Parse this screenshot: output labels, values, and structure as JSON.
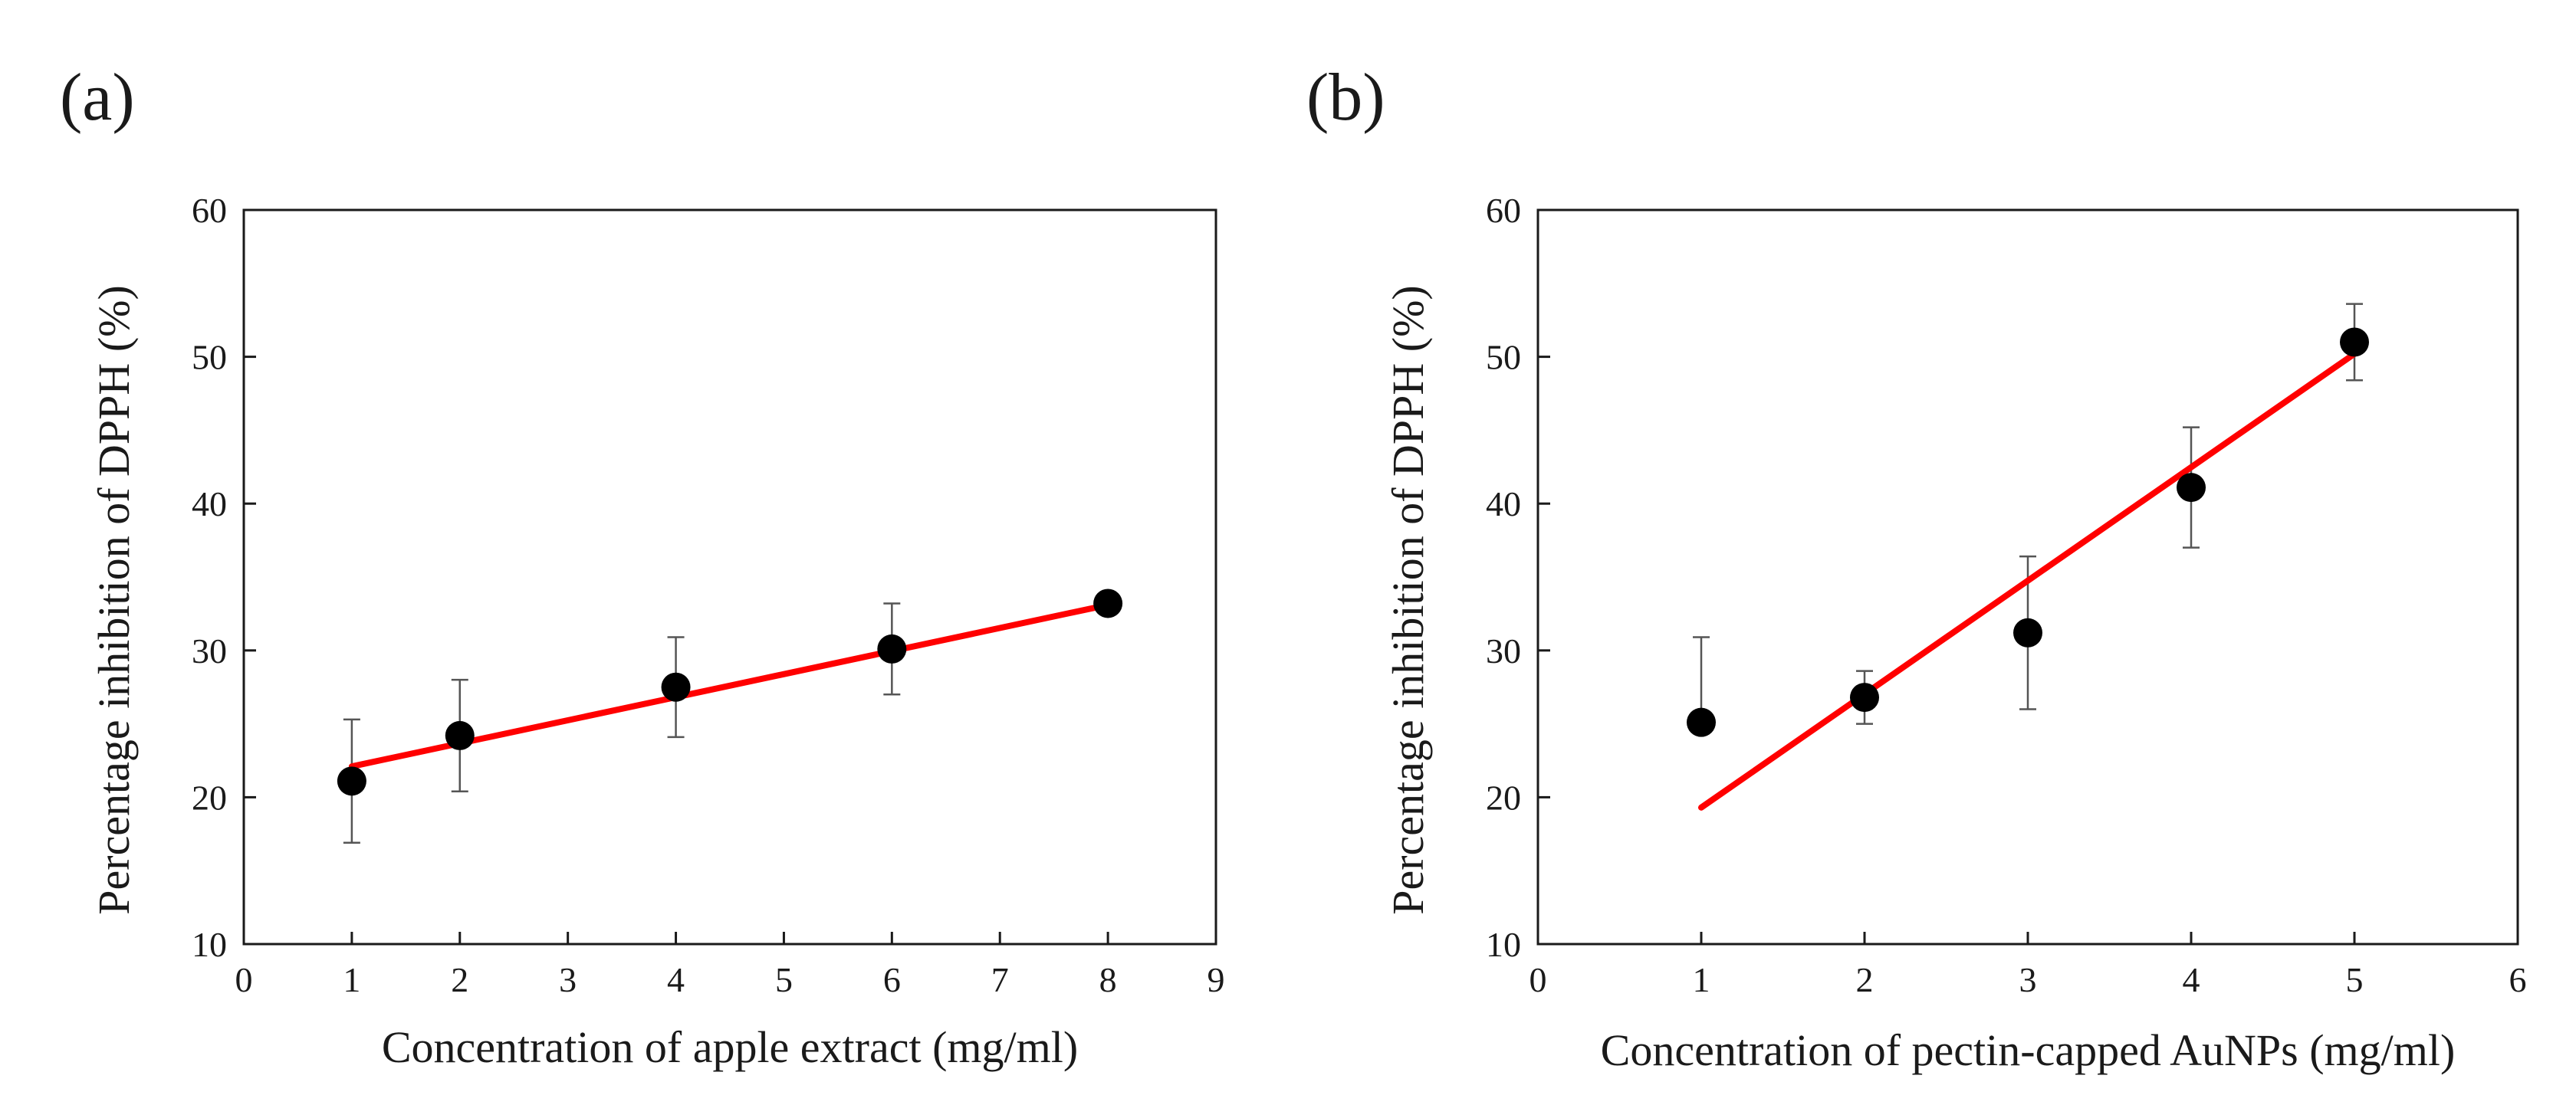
{
  "chart_data": [
    {
      "type": "scatter",
      "panel_label": "(a)",
      "xlabel": "Concentration of apple extract (mg/ml)",
      "ylabel": "Percentage inhibition of DPPH (%)",
      "xlim": [
        0,
        9
      ],
      "ylim": [
        10,
        60
      ],
      "xticks": [
        0,
        1,
        2,
        3,
        4,
        5,
        6,
        7,
        8,
        9
      ],
      "yticks": [
        10,
        20,
        30,
        40,
        50,
        60
      ],
      "grid": false,
      "legend": "none",
      "series": [
        {
          "x": [
            1,
            2,
            4,
            6,
            8
          ],
          "y": [
            21.1,
            24.2,
            27.5,
            30.1,
            33.2
          ],
          "error_up": [
            4.2,
            3.8,
            3.4,
            3.1,
            0
          ],
          "error_down": [
            4.2,
            3.8,
            3.4,
            3.1,
            0
          ],
          "marker_color": "#000000"
        }
      ],
      "fit_line": {
        "x": [
          1,
          8
        ],
        "y": [
          22.1,
          33.1
        ],
        "color": "#ff0000"
      }
    },
    {
      "type": "scatter",
      "panel_label": "(b)",
      "xlabel": "Concentration of pectin-capped AuNPs (mg/ml)",
      "ylabel": "Percentage inhibition of DPPH (%)",
      "xlim": [
        0,
        6
      ],
      "ylim": [
        10,
        60
      ],
      "xticks": [
        0,
        1,
        2,
        3,
        4,
        5,
        6
      ],
      "yticks": [
        10,
        20,
        30,
        40,
        50,
        60
      ],
      "grid": false,
      "legend": "none",
      "series": [
        {
          "x": [
            1,
            2,
            3,
            4,
            5
          ],
          "y": [
            25.1,
            26.8,
            31.2,
            41.1,
            51.0
          ],
          "error_up": [
            5.8,
            1.8,
            5.2,
            4.1,
            2.6
          ],
          "error_down": [
            0,
            1.8,
            5.2,
            4.1,
            2.6
          ],
          "marker_color": "#000000"
        }
      ],
      "fit_line": {
        "x": [
          1,
          5
        ],
        "y": [
          19.3,
          50.2
        ],
        "color": "#ff0000"
      }
    }
  ]
}
